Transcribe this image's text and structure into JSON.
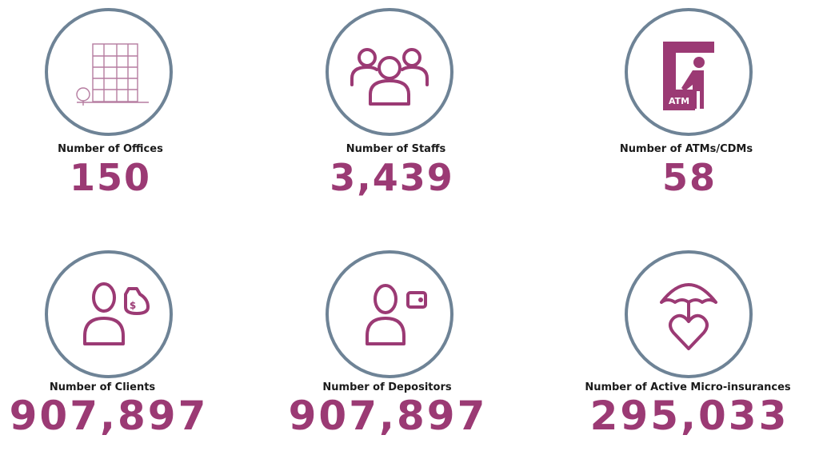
{
  "stats": [
    {
      "label": "Number of Offices",
      "value": "150"
    },
    {
      "label": "Number of Staffs",
      "value": "3,439"
    },
    {
      "label": "Number of ATMs/CDMs",
      "value": "58",
      "icon_text": "ATM"
    },
    {
      "label": "Number of Clients",
      "value": "907,897",
      "icon_text": "$"
    },
    {
      "label": "Number of Depositors",
      "value": "907,897"
    },
    {
      "label": "Number of Active Micro-insurances",
      "value": "295,033"
    }
  ]
}
